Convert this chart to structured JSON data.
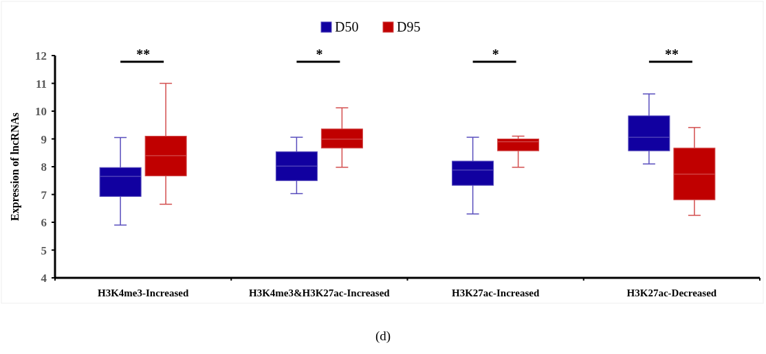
{
  "chart_data": {
    "type": "box",
    "categories": [
      "H3K4me3-Increased",
      "H3K4me3&H3K27ac-Increased",
      "H3K27ac-Increased",
      "H3K27ac-Decreased"
    ],
    "ylabel": "Expression of lncRNAs",
    "ylim": [
      4,
      12
    ],
    "yticks": [
      4,
      5,
      6,
      7,
      8,
      9,
      10,
      11,
      12
    ],
    "legend": "top",
    "grid": false,
    "series": [
      {
        "name": "D50",
        "color": "#1100a0",
        "boxes": [
          {
            "low": 5.9,
            "q1": 6.93,
            "median": 7.65,
            "q3": 7.97,
            "high": 9.05
          },
          {
            "low": 7.03,
            "q1": 7.5,
            "median": 8.02,
            "q3": 8.54,
            "high": 9.06
          },
          {
            "low": 6.3,
            "q1": 7.33,
            "median": 7.88,
            "q3": 8.2,
            "high": 9.06
          },
          {
            "low": 8.1,
            "q1": 8.57,
            "median": 9.06,
            "q3": 9.83,
            "high": 10.62
          }
        ]
      },
      {
        "name": "D95",
        "color": "#c00000",
        "boxes": [
          {
            "low": 6.65,
            "q1": 7.67,
            "median": 8.4,
            "q3": 9.1,
            "high": 11.0
          },
          {
            "low": 7.98,
            "q1": 8.67,
            "median": 8.99,
            "q3": 9.36,
            "high": 10.12
          },
          {
            "low": 7.98,
            "q1": 8.57,
            "median": 8.9,
            "q3": 9.0,
            "high": 9.1
          },
          {
            "low": 6.25,
            "q1": 6.81,
            "median": 7.73,
            "q3": 8.67,
            "high": 9.41
          }
        ]
      }
    ],
    "annotations": [
      "**",
      "*",
      "*",
      "**",
      "(d)"
    ]
  }
}
